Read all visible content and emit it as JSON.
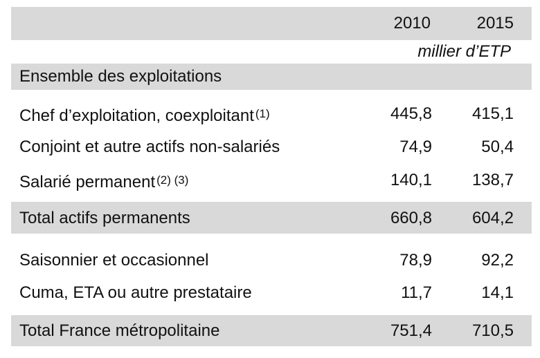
{
  "columns": [
    "2010",
    "2015"
  ],
  "unit": "millier d’ETP",
  "section_title": "Ensemble des exploitations",
  "rows": [
    {
      "label": "Chef d’exploitation, coexploitant",
      "note": "(1)",
      "v2010": "445,8",
      "v2015": "415,1"
    },
    {
      "label": "Conjoint et autre actifs non-salariés",
      "note": "",
      "v2010": "74,9",
      "v2015": "50,4"
    },
    {
      "label": "Salarié permanent",
      "note": "(2) (3)",
      "v2010": "140,1",
      "v2015": "138,7"
    },
    {
      "label": "Total actifs permanents",
      "note": "",
      "v2010": "660,8",
      "v2015": "604,2"
    },
    {
      "label": "Saisonnier et occasionnel",
      "note": "",
      "v2010": "78,9",
      "v2015": "92,2"
    },
    {
      "label": "Cuma, ETA ou autre prestataire",
      "note": "",
      "v2010": "11,7",
      "v2015": "14,1"
    },
    {
      "label": "Total France métropolitaine",
      "note": "",
      "v2010": "751,4",
      "v2015": "710,5"
    }
  ]
}
